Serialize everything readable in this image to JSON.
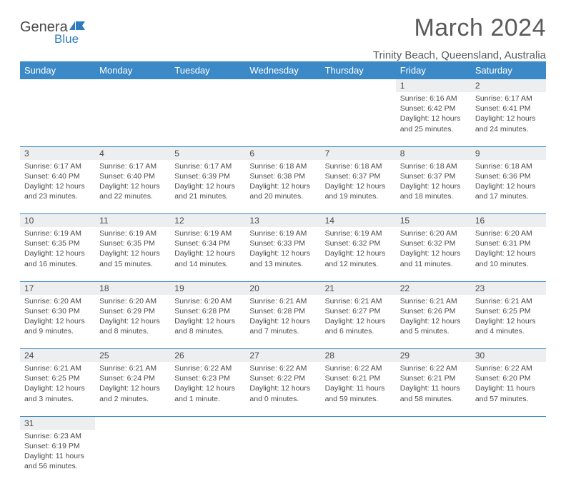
{
  "logo": {
    "word1": "Genera",
    "word2": "Blue"
  },
  "title": "March 2024",
  "location": "Trinity Beach, Queensland, Australia",
  "header_bg": "#3b89c7",
  "daynum_bg": "#eceeef",
  "border_color": "#3b89c7",
  "text_color": "#4a4a4a",
  "days": [
    "Sunday",
    "Monday",
    "Tuesday",
    "Wednesday",
    "Thursday",
    "Friday",
    "Saturday"
  ],
  "weeks": [
    [
      null,
      null,
      null,
      null,
      null,
      {
        "n": "1",
        "sr": "6:16 AM",
        "ss": "6:42 PM",
        "dl": "12 hours and 25 minutes."
      },
      {
        "n": "2",
        "sr": "6:17 AM",
        "ss": "6:41 PM",
        "dl": "12 hours and 24 minutes."
      }
    ],
    [
      {
        "n": "3",
        "sr": "6:17 AM",
        "ss": "6:40 PM",
        "dl": "12 hours and 23 minutes."
      },
      {
        "n": "4",
        "sr": "6:17 AM",
        "ss": "6:40 PM",
        "dl": "12 hours and 22 minutes."
      },
      {
        "n": "5",
        "sr": "6:17 AM",
        "ss": "6:39 PM",
        "dl": "12 hours and 21 minutes."
      },
      {
        "n": "6",
        "sr": "6:18 AM",
        "ss": "6:38 PM",
        "dl": "12 hours and 20 minutes."
      },
      {
        "n": "7",
        "sr": "6:18 AM",
        "ss": "6:37 PM",
        "dl": "12 hours and 19 minutes."
      },
      {
        "n": "8",
        "sr": "6:18 AM",
        "ss": "6:37 PM",
        "dl": "12 hours and 18 minutes."
      },
      {
        "n": "9",
        "sr": "6:18 AM",
        "ss": "6:36 PM",
        "dl": "12 hours and 17 minutes."
      }
    ],
    [
      {
        "n": "10",
        "sr": "6:19 AM",
        "ss": "6:35 PM",
        "dl": "12 hours and 16 minutes."
      },
      {
        "n": "11",
        "sr": "6:19 AM",
        "ss": "6:35 PM",
        "dl": "12 hours and 15 minutes."
      },
      {
        "n": "12",
        "sr": "6:19 AM",
        "ss": "6:34 PM",
        "dl": "12 hours and 14 minutes."
      },
      {
        "n": "13",
        "sr": "6:19 AM",
        "ss": "6:33 PM",
        "dl": "12 hours and 13 minutes."
      },
      {
        "n": "14",
        "sr": "6:19 AM",
        "ss": "6:32 PM",
        "dl": "12 hours and 12 minutes."
      },
      {
        "n": "15",
        "sr": "6:20 AM",
        "ss": "6:32 PM",
        "dl": "12 hours and 11 minutes."
      },
      {
        "n": "16",
        "sr": "6:20 AM",
        "ss": "6:31 PM",
        "dl": "12 hours and 10 minutes."
      }
    ],
    [
      {
        "n": "17",
        "sr": "6:20 AM",
        "ss": "6:30 PM",
        "dl": "12 hours and 9 minutes."
      },
      {
        "n": "18",
        "sr": "6:20 AM",
        "ss": "6:29 PM",
        "dl": "12 hours and 8 minutes."
      },
      {
        "n": "19",
        "sr": "6:20 AM",
        "ss": "6:28 PM",
        "dl": "12 hours and 8 minutes."
      },
      {
        "n": "20",
        "sr": "6:21 AM",
        "ss": "6:28 PM",
        "dl": "12 hours and 7 minutes."
      },
      {
        "n": "21",
        "sr": "6:21 AM",
        "ss": "6:27 PM",
        "dl": "12 hours and 6 minutes."
      },
      {
        "n": "22",
        "sr": "6:21 AM",
        "ss": "6:26 PM",
        "dl": "12 hours and 5 minutes."
      },
      {
        "n": "23",
        "sr": "6:21 AM",
        "ss": "6:25 PM",
        "dl": "12 hours and 4 minutes."
      }
    ],
    [
      {
        "n": "24",
        "sr": "6:21 AM",
        "ss": "6:25 PM",
        "dl": "12 hours and 3 minutes."
      },
      {
        "n": "25",
        "sr": "6:21 AM",
        "ss": "6:24 PM",
        "dl": "12 hours and 2 minutes."
      },
      {
        "n": "26",
        "sr": "6:22 AM",
        "ss": "6:23 PM",
        "dl": "12 hours and 1 minute."
      },
      {
        "n": "27",
        "sr": "6:22 AM",
        "ss": "6:22 PM",
        "dl": "12 hours and 0 minutes."
      },
      {
        "n": "28",
        "sr": "6:22 AM",
        "ss": "6:21 PM",
        "dl": "11 hours and 59 minutes."
      },
      {
        "n": "29",
        "sr": "6:22 AM",
        "ss": "6:21 PM",
        "dl": "11 hours and 58 minutes."
      },
      {
        "n": "30",
        "sr": "6:22 AM",
        "ss": "6:20 PM",
        "dl": "11 hours and 57 minutes."
      }
    ],
    [
      {
        "n": "31",
        "sr": "6:23 AM",
        "ss": "6:19 PM",
        "dl": "11 hours and 56 minutes."
      },
      null,
      null,
      null,
      null,
      null,
      null
    ]
  ],
  "labels": {
    "sunrise": "Sunrise:",
    "sunset": "Sunset:",
    "daylight": "Daylight:"
  }
}
